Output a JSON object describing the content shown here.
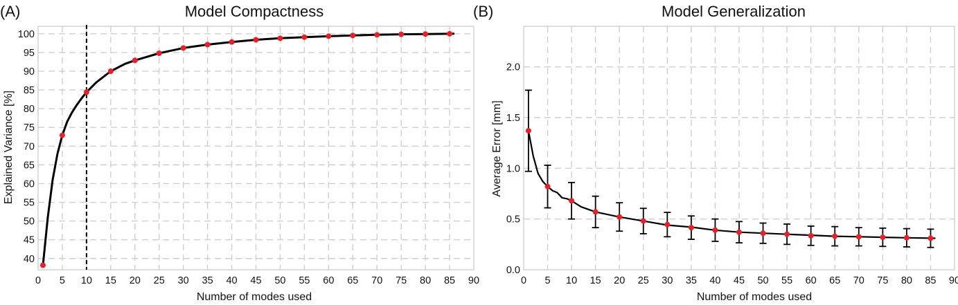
{
  "chart_data": [
    {
      "panel_label": "(A)",
      "type": "line",
      "title": "Model Compactness",
      "xlabel": "Number of modes used",
      "ylabel": "Explained Variance [%]",
      "xlim": [
        0,
        90
      ],
      "ylim": [
        37,
        102
      ],
      "xticks": [
        0,
        5,
        10,
        15,
        20,
        25,
        30,
        35,
        40,
        45,
        50,
        55,
        60,
        65,
        70,
        75,
        80,
        85,
        90
      ],
      "yticks": [
        40,
        45,
        50,
        55,
        60,
        65,
        70,
        75,
        80,
        85,
        90,
        95,
        100
      ],
      "grid": true,
      "vertical_line_x": 10,
      "curve": {
        "x": [
          1,
          2,
          3,
          4,
          5,
          6,
          7,
          8,
          9,
          10,
          12,
          15,
          18,
          20,
          25,
          30,
          35,
          40,
          45,
          50,
          55,
          60,
          65,
          70,
          75,
          80,
          86
        ],
        "y": [
          38.2,
          51,
          61,
          68,
          72.9,
          76.5,
          79,
          81,
          82.8,
          84.4,
          87,
          90,
          92,
          92.9,
          94.8,
          96.2,
          97.1,
          97.8,
          98.4,
          98.8,
          99.1,
          99.35,
          99.55,
          99.72,
          99.85,
          99.93,
          100
        ]
      },
      "markers": {
        "x": [
          1,
          5,
          10,
          15,
          20,
          25,
          30,
          35,
          40,
          45,
          50,
          55,
          60,
          65,
          70,
          75,
          80,
          85
        ],
        "y": [
          38.2,
          72.9,
          84.4,
          90.0,
          92.9,
          94.8,
          96.2,
          97.1,
          97.8,
          98.4,
          98.8,
          99.1,
          99.35,
          99.55,
          99.72,
          99.85,
          99.93,
          100.0
        ]
      }
    },
    {
      "panel_label": "(B)",
      "type": "line",
      "title": "Model Generalization",
      "xlabel": "Number of modes used",
      "ylabel": "Average Error [mm]",
      "xlim": [
        0,
        90
      ],
      "ylim": [
        0,
        2.4
      ],
      "xticks": [
        0,
        5,
        10,
        15,
        20,
        25,
        30,
        35,
        40,
        45,
        50,
        55,
        60,
        65,
        70,
        75,
        80,
        85,
        90
      ],
      "yticks": [
        "0.0",
        "0.5",
        "1.0",
        "1.5",
        "2.0"
      ],
      "grid": true,
      "curve": {
        "x": [
          1,
          2,
          3,
          4,
          5,
          6,
          7,
          8,
          9,
          10,
          12,
          15,
          18,
          20,
          25,
          30,
          35,
          40,
          45,
          50,
          55,
          60,
          65,
          70,
          75,
          80,
          86
        ],
        "y": [
          1.37,
          1.12,
          0.95,
          0.87,
          0.82,
          0.78,
          0.76,
          0.71,
          0.7,
          0.68,
          0.62,
          0.57,
          0.54,
          0.52,
          0.48,
          0.44,
          0.42,
          0.39,
          0.37,
          0.36,
          0.35,
          0.34,
          0.33,
          0.325,
          0.32,
          0.315,
          0.31
        ]
      },
      "markers": {
        "x": [
          1,
          5,
          10,
          15,
          20,
          25,
          30,
          35,
          40,
          45,
          50,
          55,
          60,
          65,
          70,
          75,
          80,
          85
        ],
        "y": [
          1.37,
          0.82,
          0.68,
          0.57,
          0.52,
          0.48,
          0.445,
          0.415,
          0.39,
          0.37,
          0.36,
          0.35,
          0.335,
          0.33,
          0.325,
          0.32,
          0.315,
          0.31
        ],
        "err": [
          0.4,
          0.21,
          0.18,
          0.155,
          0.14,
          0.125,
          0.12,
          0.115,
          0.11,
          0.105,
          0.1,
          0.1,
          0.095,
          0.095,
          0.09,
          0.09,
          0.09,
          0.09
        ]
      }
    }
  ]
}
